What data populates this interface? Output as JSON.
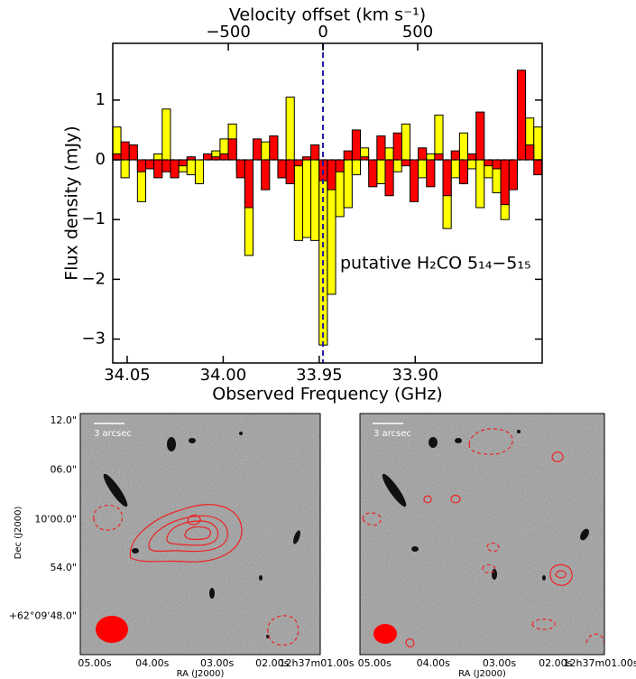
{
  "chart_data": [
    {
      "type": "step",
      "title": "Velocity offset (km s⁻¹)",
      "xlabel": "Observed Frequency (GHz)",
      "ylabel": "Flux density (mJy)",
      "annotation": "putative H₂CO 5₁₄−5₁₅",
      "x": [
        34.0554,
        34.0511,
        34.0468,
        34.0425,
        34.0382,
        34.0339,
        34.0296,
        34.0253,
        34.021,
        34.0167,
        34.0124,
        34.0081,
        34.0038,
        33.9995,
        33.9952,
        33.9909,
        33.9866,
        33.9823,
        33.978,
        33.9737,
        33.9694,
        33.9651,
        33.9608,
        33.9565,
        33.9522,
        33.9479,
        33.9436,
        33.9393,
        33.935,
        33.9307,
        33.9264,
        33.9221,
        33.9178,
        33.9135,
        33.9092,
        33.9049,
        33.9006,
        33.8963,
        33.892,
        33.8877,
        33.8834,
        33.8791,
        33.8748,
        33.8705,
        33.8662,
        33.8619,
        33.8576,
        33.8533,
        33.849,
        33.8447,
        33.8404,
        33.8361
      ],
      "series": [
        {
          "color": "#ffff00",
          "values": [
            0.55,
            -0.3,
            0.1,
            -0.7,
            -0.15,
            0.1,
            0.85,
            -0.2,
            -0.2,
            -0.25,
            -0.4,
            0.05,
            0.15,
            0.35,
            0.6,
            -0.2,
            -1.6,
            0.1,
            0.3,
            0.05,
            -0.3,
            1.05,
            -1.35,
            -1.3,
            -1.35,
            -3.1,
            -2.25,
            -0.95,
            -0.8,
            -0.25,
            0.2,
            -0.1,
            -0.4,
            0.2,
            -0.2,
            0.6,
            -0.1,
            -0.3,
            0.1,
            0.75,
            -1.15,
            -0.3,
            0.45,
            -0.15,
            -0.8,
            -0.3,
            -0.55,
            -1.0,
            -0.2,
            0.3,
            0.7,
            0.55
          ]
        },
        {
          "color": "#ff0000",
          "values": [
            0.1,
            0.3,
            0.25,
            -0.2,
            -0.15,
            -0.3,
            -0.2,
            -0.3,
            -0.1,
            0.05,
            0.0,
            0.1,
            0.05,
            0.1,
            0.35,
            -0.3,
            -0.8,
            0.35,
            -0.5,
            0.4,
            -0.3,
            -0.4,
            -0.1,
            0.05,
            0.25,
            -0.35,
            -0.5,
            -0.2,
            0.15,
            0.5,
            0.05,
            -0.45,
            0.4,
            -0.6,
            0.45,
            -0.1,
            -0.7,
            0.2,
            -0.45,
            0.1,
            -0.6,
            0.15,
            -0.4,
            0.1,
            0.8,
            -0.1,
            -0.15,
            -0.75,
            -0.5,
            1.5,
            0.25,
            -0.25
          ]
        }
      ],
      "xlim": [
        34.0575,
        33.8339
      ],
      "xticks": [
        34.05,
        {
          "value": 34,
          "label": "34.00"
        },
        33.95,
        {
          "value": 33.9,
          "label": "33.90"
        }
      ],
      "x2lim": [
        -1110,
        1157
      ],
      "x2ticks": [
        {
          "value": -500,
          "label": "−500"
        },
        0,
        500
      ],
      "ylim": [
        -3.4,
        1.95
      ],
      "yticks": [
        {
          "value": -3,
          "label": "−3"
        },
        {
          "value": -2,
          "label": "−2"
        },
        {
          "value": -1,
          "label": "−1"
        },
        0,
        1
      ]
    },
    {
      "type": "image",
      "xlabel": "RA (J2000)",
      "ylabel": "Dec (J2000)",
      "scalebar": "3 arcsec",
      "xticklabels": [
        "05.00s",
        "04.00s",
        "03.00s",
        "02.00s",
        "12h37m01.00s"
      ],
      "yticklabels": [
        "12.0\"",
        "06.0\"",
        "10'00.0\"",
        "54.0\"",
        "+62°09'48.0\""
      ]
    },
    {
      "type": "image",
      "xlabel": "RA (J2000)",
      "scalebar": "3 arcsec",
      "xticklabels": [
        "05.00s",
        "04.00s",
        "03.00s",
        "02.00s",
        "12h37m01.00s"
      ]
    }
  ]
}
